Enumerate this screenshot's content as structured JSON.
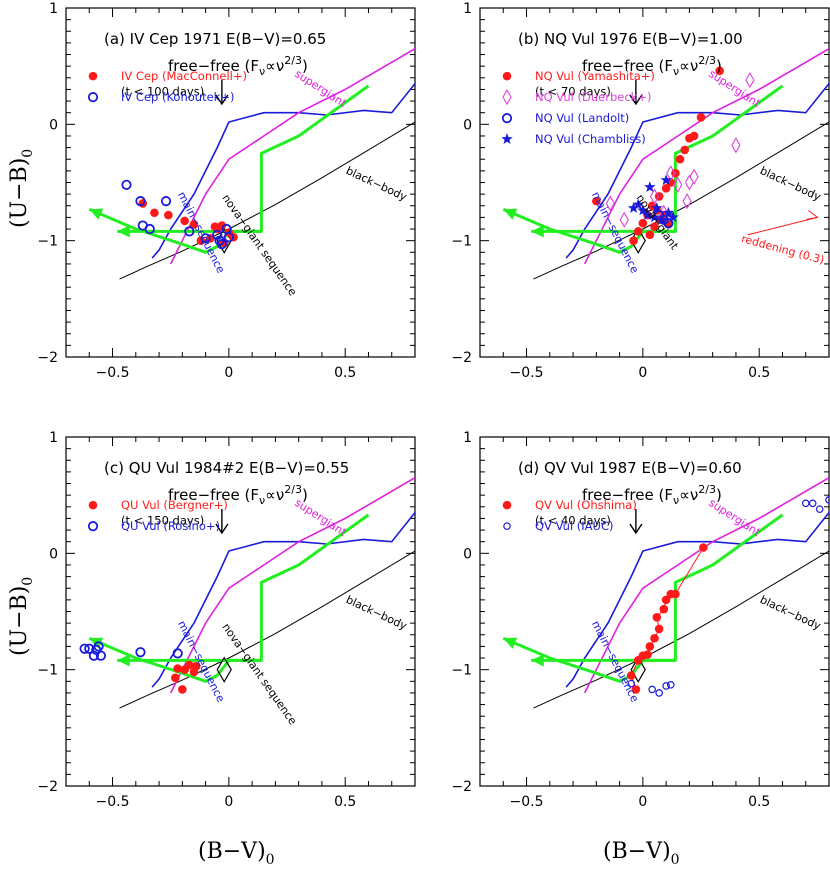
{
  "figure": {
    "xlabel": "(B−V)",
    "xlabel_sub": "0",
    "ylabel": "(U−B)",
    "ylabel_sub": "0"
  },
  "colors": {
    "green": "#22ee22",
    "blackbody": "#000000",
    "main_sequence": "#1a1adb",
    "supergiant": "#e020e0",
    "red": "#ff1a1a",
    "blue": "#1a1adb",
    "magenta": "#e040e0"
  },
  "chart_data": [
    {
      "id": "a",
      "type": "scatter",
      "title": "(a) IV Cep 1971 E(B−V)=0.65",
      "ff_label": "free−free (F",
      "ff_sub": "ν",
      "ff_mid": "∝ν",
      "ff_sup": "2/3",
      "ff_end": ")",
      "time_note": "(t < 100 days)",
      "xlim": [
        -0.7,
        0.8
      ],
      "ylim": [
        1,
        -2
      ],
      "xticks": [
        "−0.5",
        "0",
        "0.5"
      ],
      "yticks": [
        "−2",
        "−1",
        "0",
        "1"
      ],
      "show_nova_label": "nova−giant sequence",
      "show_reddening": false,
      "series": [
        {
          "name": "IV Cep (MacConnell+)",
          "marker": "filled-circle",
          "color": "red",
          "x": [
            -0.37,
            -0.32,
            -0.26,
            -0.19,
            -0.15,
            -0.12,
            -0.08,
            -0.05,
            -0.03,
            0.0,
            0.02,
            -0.02,
            -0.06
          ],
          "y": [
            -0.68,
            -0.76,
            -0.78,
            -0.83,
            -0.86,
            -1.0,
            -0.98,
            -0.9,
            -0.87,
            -0.93,
            -0.97,
            -1.02,
            -0.88
          ]
        },
        {
          "name": "IV Cep (Kohoutek+)",
          "marker": "open-circle",
          "color": "blue",
          "x": [
            -0.44,
            -0.38,
            -0.37,
            -0.34,
            -0.27,
            -0.17,
            -0.1,
            -0.05,
            -0.03,
            -0.01,
            0.0,
            -0.04
          ],
          "y": [
            -0.52,
            -0.66,
            -0.87,
            -0.9,
            -0.66,
            -0.92,
            -0.98,
            -0.95,
            -1.03,
            -0.9,
            -0.97,
            -1.0
          ]
        }
      ]
    },
    {
      "id": "b",
      "type": "scatter",
      "title": "(b) NQ Vul 1976 E(B−V)=1.00",
      "ff_label": "free−free (F",
      "ff_sub": "ν",
      "ff_mid": "∝ν",
      "ff_sup": "2/3",
      "ff_end": ")",
      "time_note": "(t < 70 days)",
      "xlim": [
        -0.7,
        0.8
      ],
      "ylim": [
        1,
        -2
      ],
      "xticks": [
        "−0.5",
        "0",
        "0.5"
      ],
      "yticks": [
        "−2",
        "−1",
        "0",
        "1"
      ],
      "show_nova_label": "nova−giant",
      "show_reddening": true,
      "reddening_label": "reddening (0.3)",
      "series": [
        {
          "name": "NQ Vul (Yamashita+)",
          "marker": "filled-circle",
          "color": "red",
          "x": [
            -0.2,
            -0.04,
            -0.02,
            0.0,
            0.02,
            0.03,
            0.04,
            0.05,
            0.06,
            0.07,
            0.08,
            0.09,
            0.1,
            0.11,
            0.12,
            0.14,
            0.16,
            0.18,
            0.2,
            0.22,
            0.25,
            0.33
          ],
          "y": [
            -0.66,
            -1.0,
            -0.92,
            -0.85,
            -0.78,
            -0.95,
            -0.7,
            -0.88,
            -0.74,
            -0.62,
            -0.82,
            -0.78,
            -0.55,
            -0.86,
            -0.5,
            -0.42,
            -0.3,
            -0.22,
            -0.12,
            -0.1,
            0.06,
            0.46
          ]
        },
        {
          "name": "NQ Vul (Duerbeck+)",
          "marker": "open-diamond",
          "color": "magenta",
          "x": [
            -0.14,
            -0.08,
            0.05,
            0.09,
            0.12,
            0.15,
            0.19,
            0.2,
            0.22,
            0.4,
            0.46
          ],
          "y": [
            -0.68,
            -0.82,
            -0.62,
            -0.76,
            -0.42,
            -0.52,
            -0.66,
            -0.5,
            -0.45,
            -0.18,
            0.38
          ]
        },
        {
          "name": "NQ Vul (Landolt)",
          "marker": "open-circle",
          "color": "blue",
          "x": [
            0.07,
            0.09,
            0.11
          ],
          "y": [
            -0.78,
            -0.82,
            -0.85
          ]
        },
        {
          "name": "NQ Vul (Chambliss)",
          "marker": "star",
          "color": "blue",
          "x": [
            -0.04,
            -0.02,
            0.0,
            0.02,
            0.03,
            0.05,
            0.06,
            0.08,
            0.1,
            0.11,
            0.13
          ],
          "y": [
            -0.72,
            -0.69,
            -0.74,
            -0.78,
            -0.54,
            -0.8,
            -0.72,
            -0.82,
            -0.48,
            -0.76,
            -0.8
          ]
        }
      ]
    },
    {
      "id": "c",
      "type": "scatter",
      "title": "(c) QU Vul 1984#2 E(B−V)=0.55",
      "ff_label": "free−free (F",
      "ff_sub": "ν",
      "ff_mid": "∝ν",
      "ff_sup": "2/3",
      "ff_end": ")",
      "time_note": "(t < 150 days)",
      "xlim": [
        -0.7,
        0.8
      ],
      "ylim": [
        1,
        -2
      ],
      "xticks": [
        "−0.5",
        "0",
        "0.5"
      ],
      "yticks": [
        "−2",
        "−1",
        "0",
        "1"
      ],
      "show_nova_label": "nova−giant sequence",
      "show_reddening": false,
      "series": [
        {
          "name": "QU Vul (Bergner+)",
          "marker": "filled-circle",
          "color": "red",
          "x": [
            -0.23,
            -0.2,
            -0.19,
            -0.17,
            -0.15,
            -0.14,
            -0.22
          ],
          "y": [
            -1.07,
            -1.17,
            -1.0,
            -0.96,
            -1.02,
            -0.97,
            -0.99
          ]
        },
        {
          "name": "QU Vul (Rosino+)",
          "marker": "open-circle",
          "color": "blue",
          "x": [
            -0.62,
            -0.6,
            -0.58,
            -0.57,
            -0.56,
            -0.55,
            -0.38,
            -0.22
          ],
          "y": [
            -0.82,
            -0.82,
            -0.88,
            -0.83,
            -0.8,
            -0.88,
            -0.85,
            -0.86
          ]
        }
      ]
    },
    {
      "id": "d",
      "type": "scatter",
      "title": "(d) QV Vul 1987 E(B−V)=0.60",
      "ff_label": "free−free (F",
      "ff_sub": "ν",
      "ff_mid": "∝ν",
      "ff_sup": "2/3",
      "ff_end": ")",
      "time_note": "(t < 40 days)",
      "xlim": [
        -0.7,
        0.8
      ],
      "ylim": [
        1,
        -2
      ],
      "xticks": [
        "−0.5",
        "0",
        "0.5"
      ],
      "yticks": [
        "−2",
        "−1",
        "0",
        "1"
      ],
      "show_nova_label": "",
      "show_reddening": false,
      "series": [
        {
          "name": "QV Vul (Ohshima)",
          "marker": "filled-circle-line",
          "color": "red",
          "x": [
            -0.03,
            -0.05,
            -0.02,
            0.0,
            0.02,
            0.03,
            0.05,
            0.07,
            0.06,
            0.09,
            0.1,
            0.12,
            0.14,
            0.26
          ],
          "y": [
            -1.17,
            -1.05,
            -0.92,
            -0.88,
            -0.87,
            -0.8,
            -0.73,
            -0.65,
            -0.55,
            -0.48,
            -0.4,
            -0.35,
            -0.35,
            0.05
          ]
        },
        {
          "name": "QV Vul (IAUC)",
          "marker": "open-circle-small",
          "color": "blue",
          "x": [
            -0.05,
            0.04,
            0.07,
            0.1,
            0.12,
            0.7,
            0.73,
            0.76,
            0.8
          ],
          "y": [
            -1.12,
            -1.17,
            -1.2,
            -1.14,
            -1.13,
            0.43,
            0.43,
            0.38,
            0.46
          ]
        }
      ]
    }
  ],
  "reference_curves": {
    "blackbody_label": "black−body",
    "main_sequence_label": "main−sequence",
    "supergiant_label": "supergiant",
    "blackbody": {
      "x": [
        -0.47,
        -0.35,
        -0.2,
        0.0,
        0.2,
        0.4,
        0.6,
        0.8
      ],
      "y": [
        -1.33,
        -1.22,
        -1.09,
        -0.9,
        -0.69,
        -0.46,
        -0.22,
        0.02
      ]
    },
    "main_sequence": {
      "x": [
        -0.33,
        -0.3,
        -0.25,
        -0.15,
        -0.05,
        0.0,
        0.15,
        0.3,
        0.42,
        0.58,
        0.7,
        0.8
      ],
      "y": [
        -1.15,
        -1.08,
        -0.9,
        -0.6,
        -0.2,
        0.02,
        0.1,
        0.1,
        0.08,
        0.12,
        0.1,
        0.35
      ]
    },
    "supergiant": {
      "x": [
        -0.25,
        -0.2,
        -0.1,
        0.0,
        0.15,
        0.3,
        0.5,
        0.8
      ],
      "y": [
        -1.2,
        -1.0,
        -0.6,
        -0.3,
        -0.1,
        0.1,
        0.3,
        0.65
      ]
    },
    "green_sequence": {
      "x": [
        -0.6,
        -0.4,
        -0.2,
        -0.1,
        -0.05,
        0.0,
        0.14,
        0.14,
        0.3,
        0.6
      ],
      "y": [
        -0.73,
        -0.9,
        -1.03,
        -1.1,
        -1.05,
        -0.92,
        -0.92,
        -0.25,
        -0.1,
        0.33
      ]
    },
    "green_arrow2": {
      "x": [
        0.14,
        -0.48
      ],
      "y": [
        -0.92,
        -0.92
      ]
    }
  }
}
